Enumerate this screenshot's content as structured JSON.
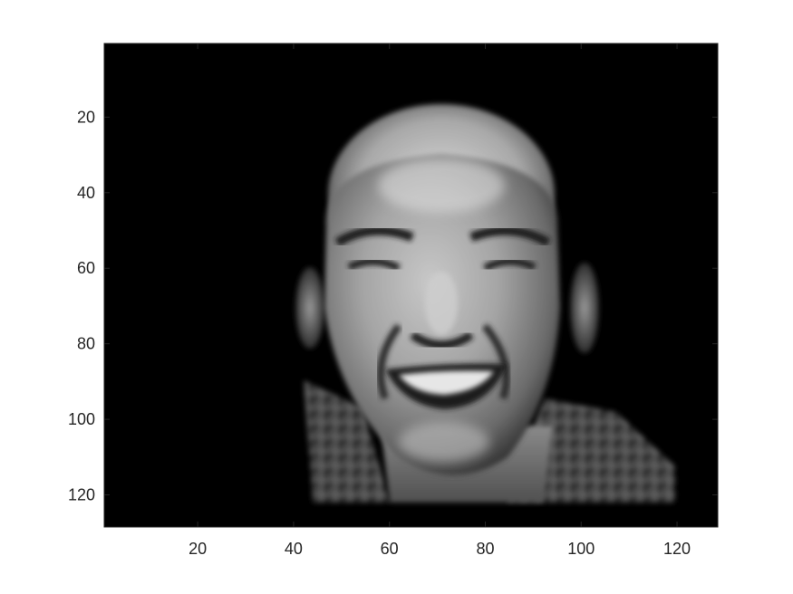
{
  "figure": {
    "kind": "grayscale image plot",
    "subject": "face-icon",
    "background_color": "#000000",
    "axis_color": "#262626"
  },
  "axes": {
    "x": {
      "lim": [
        0.5,
        128.5
      ],
      "ticks": [
        20,
        40,
        60,
        80,
        100,
        120
      ],
      "tick_labels": [
        "20",
        "40",
        "60",
        "80",
        "100",
        "120"
      ]
    },
    "y": {
      "lim": [
        0.5,
        128.5
      ],
      "reversed": true,
      "ticks": [
        20,
        40,
        60,
        80,
        100,
        120
      ],
      "tick_labels": [
        "20",
        "40",
        "60",
        "80",
        "100",
        "120"
      ]
    }
  }
}
